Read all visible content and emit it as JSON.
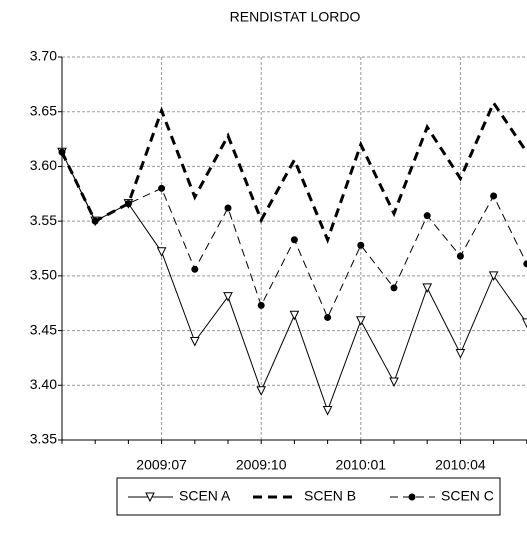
{
  "chart_data": {
    "type": "line",
    "title": "RENDISTAT LORDO",
    "categories": [
      null,
      null,
      null,
      "2009:07",
      null,
      null,
      "2009:10",
      null,
      null,
      "2010:01",
      null,
      null,
      "2010:04",
      null,
      null
    ],
    "ylim": [
      3.35,
      3.7
    ],
    "yticks": [
      {
        "value": 3.35,
        "label": "3.35"
      },
      {
        "value": 3.4,
        "label": "3.40"
      },
      {
        "value": 3.45,
        "label": "3.45"
      },
      {
        "value": 3.5,
        "label": "3.50"
      },
      {
        "value": 3.55,
        "label": "3.55"
      },
      {
        "value": 3.6,
        "label": "3.60"
      },
      {
        "value": 3.65,
        "label": "3.65"
      },
      {
        "value": 3.7,
        "label": "3.70"
      }
    ],
    "grid": true,
    "legend": "bottom",
    "series": [
      {
        "name": "SCEN A",
        "color": "#000000",
        "line_width": 1,
        "dash": "none",
        "marker": "triangle-down",
        "values": [
          3.613,
          3.55,
          3.566,
          3.522,
          3.44,
          3.481,
          3.395,
          3.464,
          3.377,
          3.459,
          3.403,
          3.489,
          3.429,
          3.5,
          3.457
        ]
      },
      {
        "name": "SCEN B",
        "color": "#000000",
        "line_width": 3,
        "dash": "9,6",
        "marker": "none",
        "values": [
          3.613,
          3.55,
          3.566,
          3.651,
          3.572,
          3.628,
          3.551,
          3.606,
          3.533,
          3.62,
          3.557,
          3.636,
          3.589,
          3.658,
          3.613
        ]
      },
      {
        "name": "SCEN C",
        "color": "#000000",
        "line_width": 1,
        "dash": "8,5",
        "marker": "dot",
        "values": [
          3.613,
          3.55,
          3.566,
          3.58,
          3.506,
          3.562,
          3.473,
          3.533,
          3.462,
          3.528,
          3.489,
          3.555,
          3.518,
          3.573,
          3.511
        ]
      }
    ]
  }
}
